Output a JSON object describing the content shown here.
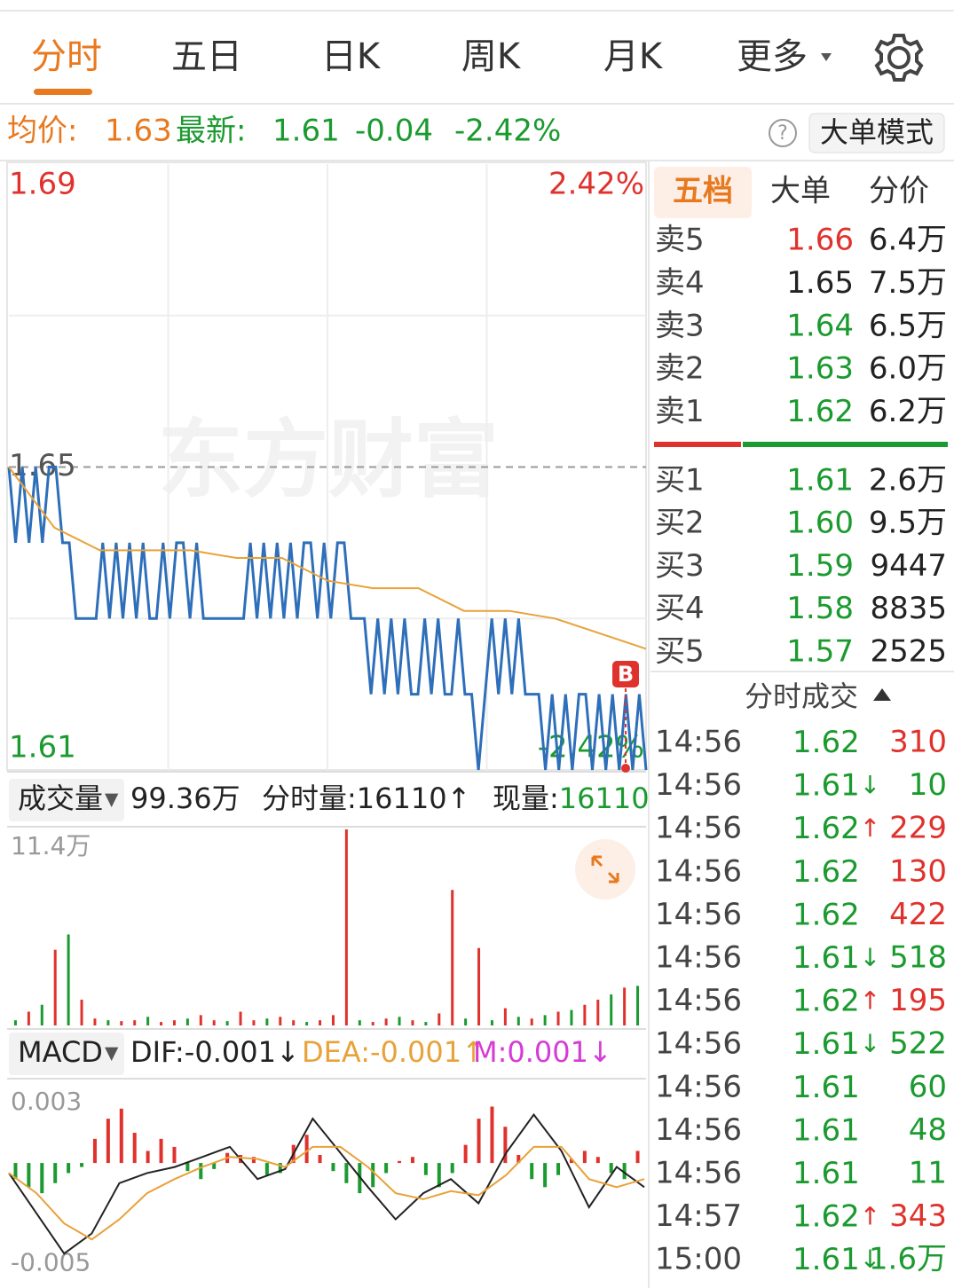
{
  "tabs": [
    "分时",
    "五日",
    "日K",
    "周K",
    "月K",
    "更多"
  ],
  "info": {
    "avg_label": "均价:",
    "avg": "1.63",
    "latest_label": "最新:",
    "latest": "1.61",
    "change": "-0.04",
    "change_pct": "-2.42%",
    "mode_button": "大单模式"
  },
  "watermark": "东方财富",
  "buy_marker": "B",
  "volume_header": {
    "label": "成交量",
    "total": "99.36万",
    "minute": "分时量:16110↑",
    "current_label": "现量:",
    "current": "16110"
  },
  "macd_header": {
    "label": "MACD",
    "dif": "DIF:-0.001↓",
    "dea": "DEA:-0.001↑",
    "m": "M:0.001↓"
  },
  "chart_data": [
    {
      "type": "line",
      "ylim": [
        1.61,
        1.69
      ],
      "yticks": [
        1.61,
        1.65,
        1.69
      ],
      "y2lim": [
        -2.42,
        2.42
      ],
      "y2ticks": [
        {
          "value": -2.42,
          "label": "-2.42%"
        },
        {
          "value": 2.42,
          "label": "2.42%"
        }
      ],
      "series": [
        {
          "color": "#2e6fba",
          "values": [
            1.65,
            1.64,
            1.65,
            1.64,
            1.65,
            1.64,
            1.65,
            1.65,
            1.64,
            1.64,
            1.63,
            1.63,
            1.63,
            1.63,
            1.64,
            1.63,
            1.64,
            1.63,
            1.64,
            1.63,
            1.64,
            1.63,
            1.63,
            1.64,
            1.63,
            1.64,
            1.64,
            1.63,
            1.64,
            1.63,
            1.63,
            1.63,
            1.63,
            1.63,
            1.63,
            1.63,
            1.64,
            1.63,
            1.64,
            1.63,
            1.64,
            1.63,
            1.64,
            1.63,
            1.64,
            1.64,
            1.63,
            1.64,
            1.63,
            1.64,
            1.64,
            1.63,
            1.63,
            1.63,
            1.62,
            1.63,
            1.62,
            1.63,
            1.62,
            1.63,
            1.62,
            1.62,
            1.63,
            1.62,
            1.63,
            1.62,
            1.62,
            1.63,
            1.62,
            1.62,
            1.61,
            1.62,
            1.63,
            1.62,
            1.63,
            1.62,
            1.63,
            1.62,
            1.62,
            1.62,
            1.61,
            1.62,
            1.61,
            1.62,
            1.61,
            1.62,
            1.62,
            1.61,
            1.62,
            1.61,
            1.62,
            1.61,
            1.62,
            1.61,
            1.62,
            1.61
          ]
        },
        {
          "color": "#e8a23a",
          "values": [
            1.65,
            1.642,
            1.639,
            1.639,
            1.639,
            1.638,
            1.638,
            1.635,
            1.634,
            1.634,
            1.631,
            1.631,
            1.63,
            1.628,
            1.626
          ]
        }
      ]
    },
    {
      "type": "bar",
      "ylim": [
        0,
        114000
      ],
      "yticks": [
        {
          "value": 114000,
          "label": "11.4万"
        }
      ],
      "values": [
        3000,
        8000,
        12000,
        44000,
        52900,
        15000,
        4000,
        3000,
        2500,
        3000,
        5000,
        2000,
        3000,
        4000,
        6000,
        3000,
        2500,
        8000,
        3000,
        4000,
        5000,
        3000,
        2000,
        3000,
        6000,
        114000,
        3000,
        2000,
        4000,
        5000,
        3000,
        2000,
        7000,
        78800,
        4000,
        45000,
        3000,
        10000,
        5000,
        4000,
        6000,
        8000,
        9000,
        12000,
        15000,
        18000,
        22000,
        23000
      ],
      "colors": [
        "#1b9a2f",
        "#e0322d",
        "#1b9a2f",
        "#e0322d",
        "#1b9a2f",
        "#e0322d",
        "#e0322d",
        "#1b9a2f",
        "#e0322d",
        "#e0322d",
        "#1b9a2f",
        "#e0322d",
        "#e0322d",
        "#1b9a2f",
        "#e0322d",
        "#e0322d",
        "#1b9a2f",
        "#e0322d",
        "#e0322d",
        "#1b9a2f",
        "#e0322d",
        "#e0322d",
        "#1b9a2f",
        "#e0322d",
        "#e0322d",
        "#e0322d",
        "#1b9a2f",
        "#e0322d",
        "#e0322d",
        "#1b9a2f",
        "#e0322d",
        "#1b9a2f",
        "#e0322d",
        "#e0322d",
        "#1b9a2f",
        "#e0322d",
        "#1b9a2f",
        "#e0322d",
        "#1b9a2f",
        "#e0322d",
        "#1b9a2f",
        "#e0322d",
        "#1b9a2f",
        "#e0322d",
        "#e0322d",
        "#1b9a2f",
        "#e0322d",
        "#1b9a2f"
      ]
    },
    {
      "type": "macd",
      "ylim": [
        -0.0059,
        0.0041
      ],
      "yticks": [
        -0.005,
        0.003
      ],
      "histogram": [
        -0.0008,
        -0.0012,
        -0.0015,
        -0.001,
        -0.0005,
        -0.0002,
        0.0012,
        0.0022,
        0.0027,
        0.0015,
        0.0006,
        0.0012,
        0.0008,
        -0.0004,
        -0.0008,
        -0.0003,
        0.0005,
        0.0004,
        0.0003,
        -0.0006,
        -0.0005,
        0.0009,
        0.0014,
        0.0004,
        -0.0004,
        -0.001,
        -0.0015,
        -0.0012,
        -0.0005,
        0.0001,
        0.0003,
        -0.0006,
        -0.0012,
        -0.0005,
        0.0009,
        0.0022,
        0.0028,
        0.0018,
        0.0004,
        -0.0008,
        -0.0012,
        -0.0006,
        0.0002,
        0.0006,
        0.0003,
        -0.0005,
        -0.0008,
        0.0006
      ],
      "up_color": "#e0322d",
      "down_color": "#1b9a2f",
      "series": [
        {
          "color": "#222222",
          "values": [
            -0.0005,
            -0.0025,
            -0.0045,
            -0.0035,
            -0.001,
            -0.0005,
            -0.0002,
            0.0003,
            0.0008,
            -0.0008,
            -0.0003,
            0.0022,
            0.0005,
            -0.0012,
            -0.0028,
            -0.0015,
            -0.0008,
            -0.002,
            0.0005,
            0.0024,
            0.0006,
            -0.0022,
            -0.0002,
            -0.0012
          ]
        },
        {
          "color": "#e8a23a",
          "values": [
            -0.0005,
            -0.0015,
            -0.003,
            -0.0038,
            -0.0028,
            -0.0015,
            -0.0008,
            -0.0002,
            0.0003,
            0.0002,
            -0.0002,
            0.0008,
            0.0008,
            -0.0002,
            -0.0015,
            -0.0018,
            -0.0014,
            -0.0016,
            -0.0006,
            0.0008,
            0.0008,
            -0.0008,
            -0.0012,
            -0.0008
          ]
        }
      ]
    }
  ],
  "orderbook": {
    "tabs": [
      "五档",
      "大单",
      "分价"
    ],
    "sells": [
      {
        "label": "卖5",
        "price": "1.66",
        "volume": "6.4万",
        "color": "#e0322d"
      },
      {
        "label": "卖4",
        "price": "1.65",
        "volume": "7.5万",
        "color": "#222222"
      },
      {
        "label": "卖3",
        "price": "1.64",
        "volume": "6.5万",
        "color": "#1b9a2f"
      },
      {
        "label": "卖2",
        "price": "1.63",
        "volume": "6.0万",
        "color": "#1b9a2f"
      },
      {
        "label": "卖1",
        "price": "1.62",
        "volume": "6.2万",
        "color": "#1b9a2f"
      }
    ],
    "buys": [
      {
        "label": "买1",
        "price": "1.61",
        "volume": "2.6万",
        "color": "#1b9a2f"
      },
      {
        "label": "买2",
        "price": "1.60",
        "volume": "9.5万",
        "color": "#1b9a2f"
      },
      {
        "label": "买3",
        "price": "1.59",
        "volume": "9447",
        "color": "#1b9a2f"
      },
      {
        "label": "买4",
        "price": "1.58",
        "volume": "8835",
        "color": "#1b9a2f"
      },
      {
        "label": "买5",
        "price": "1.57",
        "volume": "2525",
        "color": "#1b9a2f"
      }
    ]
  },
  "trades": {
    "title": "分时成交",
    "rows": [
      {
        "time": "14:56",
        "price": "1.62",
        "volume": "310",
        "color": "#e0322d"
      },
      {
        "time": "14:56",
        "price": "1.61",
        "dir": "↓",
        "volume": "10",
        "color": "#1b9a2f"
      },
      {
        "time": "14:56",
        "price": "1.62",
        "dir": "↑",
        "volume": "229",
        "color": "#e0322d"
      },
      {
        "time": "14:56",
        "price": "1.62",
        "volume": "130",
        "color": "#e0322d"
      },
      {
        "time": "14:56",
        "price": "1.62",
        "volume": "422",
        "color": "#e0322d"
      },
      {
        "time": "14:56",
        "price": "1.61",
        "dir": "↓",
        "volume": "518",
        "color": "#1b9a2f"
      },
      {
        "time": "14:56",
        "price": "1.62",
        "dir": "↑",
        "volume": "195",
        "color": "#e0322d"
      },
      {
        "time": "14:56",
        "price": "1.61",
        "dir": "↓",
        "volume": "522",
        "color": "#1b9a2f"
      },
      {
        "time": "14:56",
        "price": "1.61",
        "volume": "60",
        "color": "#1b9a2f"
      },
      {
        "time": "14:56",
        "price": "1.61",
        "volume": "48",
        "color": "#1b9a2f"
      },
      {
        "time": "14:56",
        "price": "1.61",
        "volume": "11",
        "color": "#1b9a2f"
      },
      {
        "time": "14:57",
        "price": "1.62",
        "dir": "↑",
        "volume": "343",
        "color": "#e0322d"
      },
      {
        "time": "15:00",
        "price": "1.61",
        "dir": "↓",
        "volume": "1.6万",
        "color": "#1b9a2f"
      }
    ]
  }
}
